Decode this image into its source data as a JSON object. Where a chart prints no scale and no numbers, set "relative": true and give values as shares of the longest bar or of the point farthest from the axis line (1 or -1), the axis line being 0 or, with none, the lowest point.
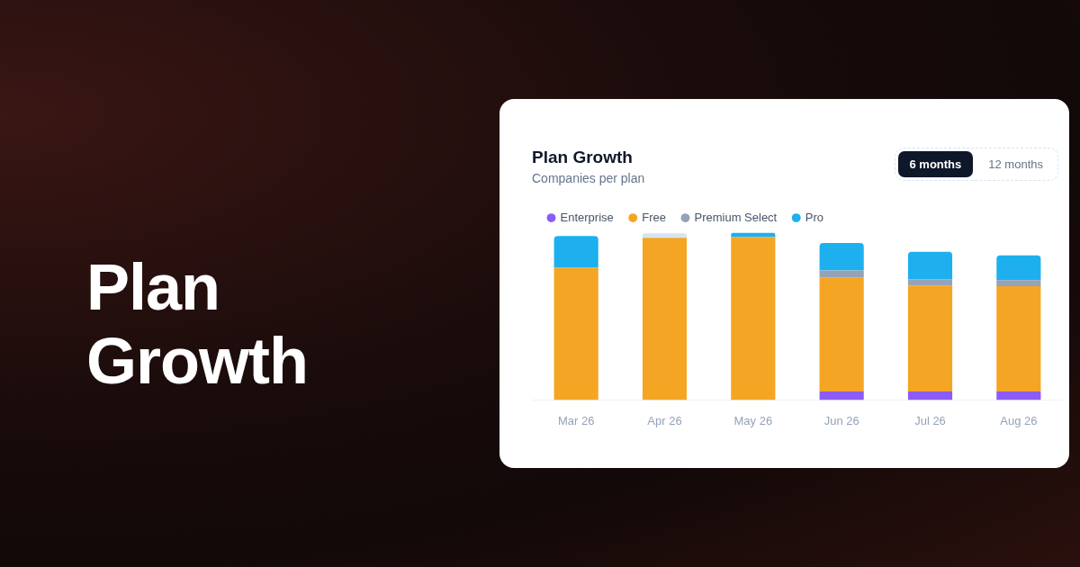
{
  "chart_data": {
    "type": "bar",
    "title": "Plan Growth",
    "subtitle": "Companies per plan",
    "categories": [
      "Mar 26",
      "Apr 26",
      "May 26",
      "Jun 26",
      "Jul 26",
      "Aug 26"
    ],
    "stacked": true,
    "relative": true,
    "legend": "top left",
    "grid": false,
    "series": [
      {
        "name": "Enterprise",
        "color": "#8b5cf6",
        "values": [
          null,
          null,
          null,
          0.05,
          0.05,
          0.05
        ]
      },
      {
        "name": "Free",
        "color": "#f5a524",
        "values": [
          0.79,
          0.97,
          0.974,
          0.683,
          0.635,
          0.63
        ]
      },
      {
        "name": "Premium Select",
        "color": "#94a3b8",
        "colors": [
          "#94a3b8",
          "#d6e4f0",
          "#94a3b8",
          "#94a3b8",
          "#94a3b8",
          "#94a3b8"
        ],
        "values": [
          null,
          0.026,
          null,
          0.042,
          0.037,
          0.037
        ]
      },
      {
        "name": "Pro",
        "color": "#1eb0ee",
        "values": [
          0.19,
          null,
          0.026,
          0.164,
          0.164,
          0.148
        ]
      }
    ],
    "annotations": [
      "Plan Growth",
      "6 months",
      "12 months"
    ]
  }
}
